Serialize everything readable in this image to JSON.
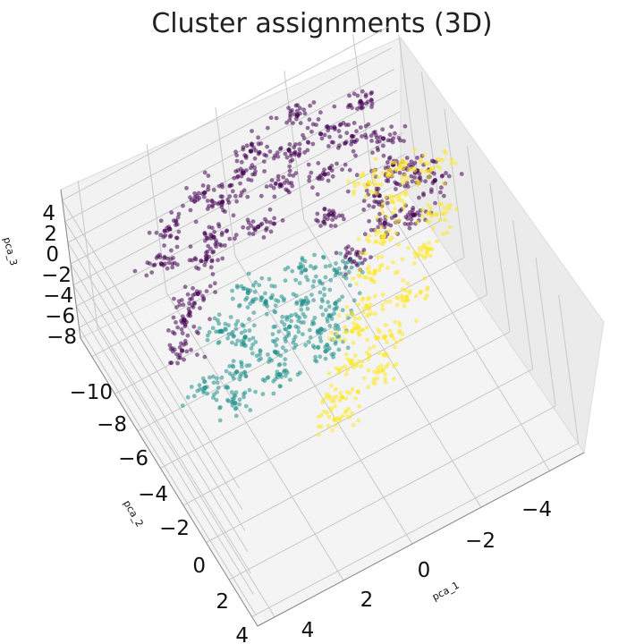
{
  "chart_data": {
    "type": "scatter",
    "projection": "3d",
    "title": "Cluster assignments (3D)",
    "xlabel": "pca_1",
    "ylabel": "pca_2",
    "zlabel": "pca_3",
    "xlim": [
      -5,
      4.5
    ],
    "ylim": [
      -11,
      4.5
    ],
    "zlim": [
      -9,
      5
    ],
    "x_ticks": [
      -4,
      -2,
      0,
      2,
      4
    ],
    "y_ticks": [
      -10,
      -8,
      -6,
      -4,
      -2,
      0,
      2,
      4
    ],
    "z_ticks": [
      4,
      2,
      0,
      -2,
      -4,
      -6,
      -8
    ],
    "x_tick_labels": [
      "−4",
      "−2",
      "0",
      "2",
      "4"
    ],
    "y_tick_labels": [
      "−10",
      "−8",
      "−6",
      "−4",
      "−2",
      "0",
      "2",
      "4"
    ],
    "z_tick_labels": [
      "4",
      "2",
      "0",
      "−2",
      "−4",
      "−6",
      "−8"
    ],
    "grid": true,
    "colormap": "viridis",
    "series": [
      {
        "color": "#440154",
        "points_approx": [
          [
            -3.6,
            -7.5,
            2.0
          ],
          [
            -3.0,
            -8.5,
            1.5
          ],
          [
            -2.4,
            -9.5,
            1.0
          ],
          [
            -3.4,
            -6.0,
            2.5
          ],
          [
            -2.0,
            -8.0,
            0.5
          ],
          [
            -1.6,
            -10.0,
            0.0
          ],
          [
            -1.0,
            -9.0,
            -0.5
          ],
          [
            -0.4,
            -10.5,
            -1.0
          ],
          [
            0.4,
            -10.0,
            -1.5
          ],
          [
            1.0,
            -9.0,
            -2.0
          ],
          [
            -2.8,
            -5.5,
            1.5
          ],
          [
            -1.6,
            -6.5,
            0.0
          ],
          [
            0.0,
            -8.0,
            -1.0
          ],
          [
            1.4,
            -8.5,
            -2.5
          ],
          [
            2.0,
            -7.5,
            -3.0
          ],
          [
            -3.8,
            -5.0,
            3.0
          ],
          [
            -4.0,
            -4.0,
            3.5
          ],
          [
            -3.2,
            -3.5,
            2.5
          ],
          [
            -2.6,
            -4.5,
            1.0
          ],
          [
            -1.4,
            -4.0,
            0.5
          ],
          [
            2.6,
            -7.0,
            -3.5
          ],
          [
            3.0,
            -6.0,
            -4.0
          ],
          [
            -0.8,
            -11.0,
            -0.5
          ],
          [
            -2.2,
            -11.0,
            0.5
          ],
          [
            0.6,
            -11.0,
            -2.0
          ],
          [
            2.4,
            -9.5,
            -3.0
          ],
          [
            -3.6,
            -9.5,
            2.0
          ],
          [
            1.8,
            -10.5,
            -2.5
          ]
        ]
      },
      {
        "color": "#21918c",
        "points_approx": [
          [
            0.0,
            -4.0,
            -1.0
          ],
          [
            0.6,
            -3.5,
            -1.5
          ],
          [
            1.2,
            -3.0,
            -2.0
          ],
          [
            0.0,
            -2.5,
            -1.0
          ],
          [
            -0.6,
            -3.0,
            -0.5
          ],
          [
            1.6,
            -4.5,
            -2.5
          ],
          [
            2.2,
            -3.5,
            -3.0
          ],
          [
            0.8,
            -5.0,
            -1.5
          ],
          [
            -0.4,
            -5.0,
            -0.5
          ],
          [
            1.4,
            -2.0,
            -2.0
          ],
          [
            2.6,
            -2.5,
            -3.5
          ],
          [
            0.2,
            -1.5,
            -1.0
          ],
          [
            2.0,
            -5.5,
            -3.0
          ],
          [
            3.0,
            -4.0,
            -4.0
          ],
          [
            -1.0,
            -4.0,
            0.0
          ],
          [
            1.0,
            -6.0,
            -2.0
          ]
        ]
      },
      {
        "color": "#fde725",
        "points_approx": [
          [
            -0.6,
            -1.5,
            -0.5
          ],
          [
            -1.2,
            -2.0,
            0.0
          ],
          [
            -1.8,
            -3.0,
            0.5
          ],
          [
            -2.4,
            -4.0,
            1.0
          ],
          [
            -3.0,
            -5.0,
            1.5
          ],
          [
            -3.6,
            -6.0,
            2.0
          ],
          [
            -0.2,
            -0.5,
            -1.0
          ],
          [
            0.4,
            0.5,
            -1.5
          ],
          [
            -1.4,
            -0.5,
            -0.5
          ],
          [
            -2.2,
            -1.5,
            0.0
          ],
          [
            -3.2,
            -2.5,
            1.0
          ],
          [
            -3.8,
            -3.5,
            1.5
          ],
          [
            0.8,
            1.0,
            -2.0
          ],
          [
            -0.8,
            0.5,
            -1.0
          ],
          [
            -4.2,
            -5.0,
            2.5
          ],
          [
            -2.8,
            -6.5,
            1.0
          ]
        ]
      }
    ]
  }
}
